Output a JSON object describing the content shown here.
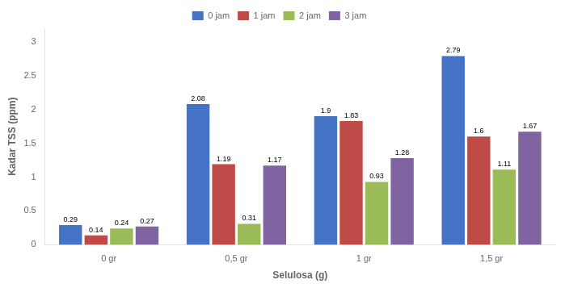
{
  "chart_data": {
    "type": "bar",
    "xlabel": "Selulosa (g)",
    "ylabel": "Kadar TSS (ppm)",
    "categories": [
      "0 gr",
      "0,5 gr",
      "1 gr",
      "1,5 gr"
    ],
    "series": [
      {
        "name": "0 jam",
        "color": "#4472C4",
        "values": [
          0.29,
          2.08,
          1.9,
          2.79
        ]
      },
      {
        "name": "1 jam",
        "color": "#BE4B48",
        "values": [
          0.14,
          1.19,
          1.83,
          1.6
        ]
      },
      {
        "name": "2 jam",
        "color": "#9BBB59",
        "values": [
          0.24,
          0.31,
          0.93,
          1.11
        ]
      },
      {
        "name": "3 jam",
        "color": "#8064A2",
        "values": [
          0.27,
          1.17,
          1.28,
          1.67
        ]
      }
    ],
    "ylim": [
      0,
      3.2
    ],
    "yticks": [
      0,
      0.5,
      1,
      1.5,
      2,
      2.5,
      3
    ],
    "grid": false,
    "legend": "top",
    "data_labels": true
  }
}
